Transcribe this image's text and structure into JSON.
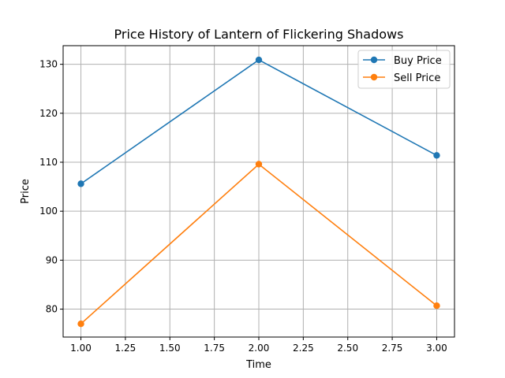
{
  "chart_data": {
    "type": "line",
    "title": "Price History of Lantern of Flickering Shadows",
    "xlabel": "Time",
    "ylabel": "Price",
    "xlim": [
      0.9,
      3.1
    ],
    "ylim": [
      74.3,
      133.8
    ],
    "xticks": [
      "1.00",
      "1.25",
      "1.50",
      "1.75",
      "2.00",
      "2.25",
      "2.50",
      "2.75",
      "3.00"
    ],
    "yticks": [
      "80",
      "90",
      "100",
      "110",
      "120",
      "130"
    ],
    "grid": true,
    "legend_position": "top-right",
    "x": [
      1,
      2,
      3
    ],
    "series": [
      {
        "name": "Buy Price",
        "color": "#1f77b4",
        "marker": "circle",
        "values": [
          105.6,
          130.9,
          111.4
        ]
      },
      {
        "name": "Sell Price",
        "color": "#ff7f0e",
        "marker": "circle",
        "values": [
          77.0,
          109.6,
          80.7
        ]
      }
    ]
  }
}
